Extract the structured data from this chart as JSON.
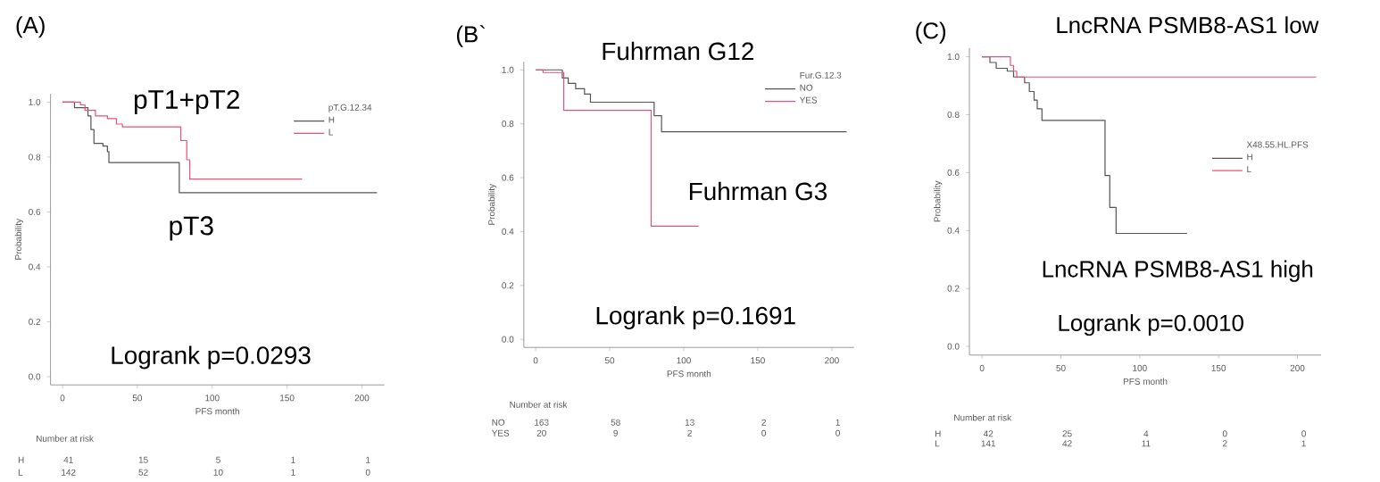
{
  "chart_data": [
    {
      "type": "step",
      "title": "(A)",
      "xlabel": "PFS month",
      "ylabel": "Probability",
      "legend_title": "pT.G.12.34",
      "legend": "top right",
      "grid": false,
      "xlim": [
        -8,
        215
      ],
      "xticks": [
        0,
        50,
        100,
        150,
        200
      ],
      "ylim": [
        -0.03,
        1.03
      ],
      "yticks": [
        {
          "value": 0,
          "label": "0.0"
        },
        {
          "value": 0.2,
          "label": "0.2"
        },
        {
          "value": 0.4,
          "label": "0.4"
        },
        {
          "value": 0.6,
          "label": "0.6"
        },
        {
          "value": 0.8,
          "label": "0.8"
        },
        {
          "value": 1,
          "label": "1.0"
        }
      ],
      "series": [
        {
          "name": "H",
          "color": "#555555",
          "x": [
            0,
            8,
            17,
            19,
            21,
            27,
            30,
            31,
            78,
            210
          ],
          "values": [
            1.0,
            0.98,
            0.95,
            0.9,
            0.85,
            0.84,
            0.82,
            0.78,
            0.67,
            0.67
          ]
        },
        {
          "name": "L",
          "color": "#e8527a",
          "x": [
            0,
            12,
            15,
            22,
            30,
            36,
            40,
            79,
            83,
            85,
            160
          ],
          "values": [
            1.0,
            0.99,
            0.97,
            0.95,
            0.94,
            0.92,
            0.91,
            0.86,
            0.79,
            0.72,
            0.72
          ]
        }
      ],
      "annotations": [
        "pT1+pT2",
        "pT3",
        "Logrank p=0.0293",
        "Number at risk",
        "H",
        "41",
        "15",
        "5",
        "1",
        "1",
        "L",
        "142",
        "52",
        "10",
        "1",
        "0"
      ]
    },
    {
      "type": "step",
      "title": "(B`",
      "xlabel": "PFS month",
      "ylabel": "Probability",
      "legend_title": "Fur.G.12.3",
      "legend": "top right",
      "grid": false,
      "xlim": [
        -8,
        215
      ],
      "xticks": [
        0,
        50,
        100,
        150,
        200
      ],
      "ylim": [
        -0.03,
        1.03
      ],
      "yticks": [
        {
          "value": 0,
          "label": "0.0"
        },
        {
          "value": 0.2,
          "label": "0.2"
        },
        {
          "value": 0.4,
          "label": "0.4"
        },
        {
          "value": 0.6,
          "label": "0.6"
        },
        {
          "value": 0.8,
          "label": "0.8"
        },
        {
          "value": 1,
          "label": "1.0"
        }
      ],
      "series": [
        {
          "name": "NO",
          "color": "#555555",
          "x": [
            0,
            18,
            22,
            27,
            33,
            37,
            80,
            85,
            210
          ],
          "values": [
            1.0,
            0.97,
            0.95,
            0.93,
            0.91,
            0.88,
            0.83,
            0.77,
            0.77
          ]
        },
        {
          "name": "YES",
          "color": "#e8527a",
          "x": [
            0,
            5,
            19,
            78,
            110
          ],
          "values": [
            1.0,
            0.99,
            0.85,
            0.42,
            0.42
          ]
        }
      ],
      "annotations": [
        "Fuhrman G12",
        "Fuhrman G3",
        "Logrank p=0.1691",
        "Number at risk",
        "NO",
        "163",
        "58",
        "13",
        "2",
        "1",
        "YES",
        "20",
        "9",
        "2",
        "0",
        "0"
      ]
    },
    {
      "type": "step",
      "title": "(C)",
      "xlabel": "PFS month",
      "ylabel": "Probability",
      "legend_title": "X48.55.HL.PFS",
      "legend": "right",
      "grid": false,
      "xlim": [
        -8,
        215
      ],
      "xticks": [
        0,
        50,
        100,
        150,
        200
      ],
      "ylim": [
        -0.03,
        1.03
      ],
      "yticks": [
        {
          "value": 0,
          "label": "0.0"
        },
        {
          "value": 0.2,
          "label": "0.2"
        },
        {
          "value": 0.4,
          "label": "0.4"
        },
        {
          "value": 0.6,
          "label": "0.6"
        },
        {
          "value": 0.8,
          "label": "0.8"
        },
        {
          "value": 1,
          "label": "1.0"
        }
      ],
      "series": [
        {
          "name": "H",
          "color": "#555555",
          "x": [
            0,
            5,
            9,
            16,
            20,
            27,
            30,
            33,
            35,
            38,
            78,
            81,
            85,
            130
          ],
          "values": [
            1.0,
            0.98,
            0.96,
            0.95,
            0.93,
            0.91,
            0.88,
            0.85,
            0.82,
            0.78,
            0.59,
            0.48,
            0.39,
            0.39
          ]
        },
        {
          "name": "L",
          "color": "#e8527a",
          "x": [
            0,
            18,
            20,
            22,
            212
          ],
          "values": [
            1.0,
            0.97,
            0.95,
            0.93,
            0.93
          ]
        }
      ],
      "annotations": [
        "LncRNA PSMB8-AS1 low",
        "LncRNA PSMB8-AS1 high",
        "Logrank p=0.0010",
        "Number at risk",
        "H",
        "42",
        "25",
        "4",
        "0",
        "0",
        "L",
        "141",
        "42",
        "11",
        "2",
        "1"
      ]
    }
  ]
}
